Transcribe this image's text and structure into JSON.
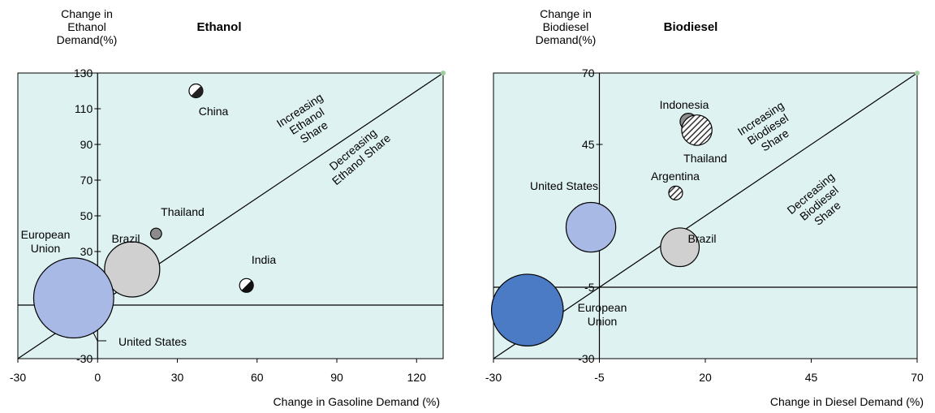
{
  "chart_data": [
    {
      "type": "scatter",
      "title": "Ethanol",
      "ylabel_lines": [
        "Change in",
        "Ethanol",
        "Demand(%)"
      ],
      "xlabel": "Change in Gasoline Demand (%)",
      "xlim": [
        -30,
        130
      ],
      "ylim": [
        -30,
        130
      ],
      "xticks": [
        -30,
        0,
        30,
        60,
        90,
        120
      ],
      "yticks": [
        -30,
        -10,
        10,
        30,
        50,
        70,
        90,
        110,
        130
      ],
      "diagonal": [
        [
          -30,
          -30
        ],
        [
          130,
          130
        ]
      ],
      "region_labels": [
        {
          "lines": [
            "Increasing",
            "Ethanol",
            "Share"
          ]
        },
        {
          "lines": [
            "Decreasing",
            "Ethanol Share"
          ]
        }
      ],
      "points": [
        {
          "name": "China",
          "x": 37,
          "y": 120,
          "size": 0.25,
          "fill": "#222222",
          "style": "half"
        },
        {
          "name": "Thailand",
          "x": 22,
          "y": 40,
          "size": 0.2,
          "fill": "#8c8c8c",
          "style": "solid"
        },
        {
          "name": "Brazil",
          "x": 13,
          "y": 20,
          "size": 1.0,
          "fill": "#d0d0d0",
          "style": "solid"
        },
        {
          "name": "India",
          "x": 56,
          "y": 11,
          "size": 0.25,
          "fill": "#111111",
          "style": "half"
        },
        {
          "name": "European Union",
          "x": -17,
          "y": 10,
          "size": 0.3,
          "fill": "#4a7bc4",
          "style": "solid"
        },
        {
          "name": "United States",
          "x": -9,
          "y": 4,
          "size": 1.45,
          "fill": "#a9b9e6",
          "style": "solid"
        }
      ],
      "point_labels": {
        "China": "China",
        "Thailand": "Thailand",
        "Brazil": "Brazil",
        "India": "India",
        "European Union": [
          "European",
          "Union"
        ],
        "United States": "United States"
      }
    },
    {
      "type": "scatter",
      "title": "Biodiesel",
      "ylabel_lines": [
        "Change in",
        "Biodiesel",
        "Demand(%)"
      ],
      "xlabel": "Change in Diesel Demand (%)",
      "xlim": [
        -30,
        70
      ],
      "ylim": [
        -30,
        70
      ],
      "xticks": [
        -30,
        -5,
        20,
        45,
        70
      ],
      "yticks": [
        -30,
        -5,
        20,
        45,
        70
      ],
      "diagonal": [
        [
          -30,
          -30
        ],
        [
          70,
          70
        ]
      ],
      "region_labels": [
        {
          "lines": [
            "Increasing",
            "Biodiesel",
            "Share"
          ]
        },
        {
          "lines": [
            "Decreasing",
            "Biodiesel",
            "Share"
          ]
        }
      ],
      "points": [
        {
          "name": "Indonesia",
          "x": 16,
          "y": 53,
          "size": 0.3,
          "fill": "#8c8c8c",
          "style": "solid"
        },
        {
          "name": "Thailand",
          "x": 18,
          "y": 50,
          "size": 0.55,
          "fill": "#444444",
          "style": "hatch"
        },
        {
          "name": "Argentina",
          "x": 13,
          "y": 28,
          "size": 0.25,
          "fill": "#444444",
          "style": "hatch"
        },
        {
          "name": "United States",
          "x": -7,
          "y": 16,
          "size": 0.9,
          "fill": "#a9b9e6",
          "style": "solid"
        },
        {
          "name": "Brazil",
          "x": 14,
          "y": 9,
          "size": 0.7,
          "fill": "#d0d0d0",
          "style": "solid"
        },
        {
          "name": "European Union",
          "x": -22,
          "y": -13,
          "size": 1.3,
          "fill": "#4a7bc4",
          "style": "solid"
        }
      ],
      "point_labels": {
        "Indonesia": "Indonesia",
        "Thailand": "Thailand",
        "Argentina": "Argentina",
        "United States": "United States",
        "Brazil": "Brazil",
        "European Union": [
          "European",
          "Union"
        ]
      }
    }
  ]
}
